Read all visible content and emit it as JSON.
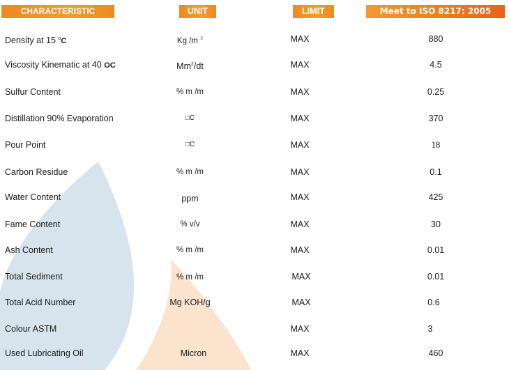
{
  "header": {
    "characteristic": "CHARACTERISTIC",
    "unit": "UNIT",
    "limit": "LIMIT",
    "standard": "Meet to ISO 8217: 2005"
  },
  "rows": [
    {
      "name_main": "Density at 15 ",
      "name_sup": "o",
      "name_tail": "C",
      "unit_main": "Kg /m ",
      "unit_sup": "3",
      "limit": "MAX",
      "value": "880"
    },
    {
      "name_main": "Viscosity Kinematic at 40 ",
      "name_tail": "OC",
      "unit_main": "Mm",
      "unit_sup": "2",
      "unit_tail": "/dt",
      "limit": "MAX",
      "value": "4.5"
    },
    {
      "name": "Sulfur Content",
      "unit": "% m /m",
      "limit": "MAX",
      "value": "0.25"
    },
    {
      "name": "Distillation 90% Evaporation",
      "unit": "□C",
      "limit": "MAX",
      "value": "370"
    },
    {
      "name": "Pour Point",
      "unit": "□C",
      "limit": "MAX",
      "value": "18"
    },
    {
      "name": "Carbon Residue",
      "unit": "% m /m",
      "limit": "MAX",
      "value": "0.1"
    },
    {
      "name": "Water Content",
      "unit": "ppm",
      "limit": "MAX",
      "value": "425"
    },
    {
      "name": "Fame Content",
      "unit": "% v/v",
      "limit": "MAX",
      "value": "30"
    },
    {
      "name": "Ash Content",
      "unit": "% m /m",
      "limit": "MAX",
      "value": "0.01"
    },
    {
      "name": "Total Sediment",
      "unit": "% m /m",
      "limit": "MAX",
      "value": "0.01"
    },
    {
      "name": "Total Acid Number",
      "unit": "Mg KOH/g",
      "limit": "MAX",
      "value": "0.6"
    },
    {
      "name": "Colour ASTM",
      "unit": "",
      "limit": "MAX",
      "value": "3"
    },
    {
      "name": "Used Lubricating Oil",
      "unit": "Micron",
      "limit": "MAX",
      "value": "460"
    }
  ],
  "colors": {
    "header_orange": "#f08a1e",
    "blue_shape": "#d3e1ea",
    "orange_shape": "#fbe3cf"
  }
}
